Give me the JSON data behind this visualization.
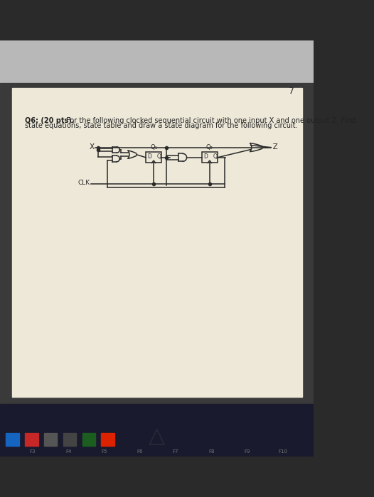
{
  "page_number": "7",
  "question_bold": "Q6: (20 pts).",
  "question_text": " For the following clocked sequential circuit with one input X and one output Z. Find",
  "question_text2": "state equations, state table and draw a state diagram for the following circuit.",
  "bg_top_color": "#b8b8b8",
  "bg_paper_color": "#ede8d8",
  "bg_dark_color": "#2a2a2a",
  "bg_taskbar_color": "#1a1a2e",
  "line_color": "#2a2a2a",
  "text_color": "#222222"
}
